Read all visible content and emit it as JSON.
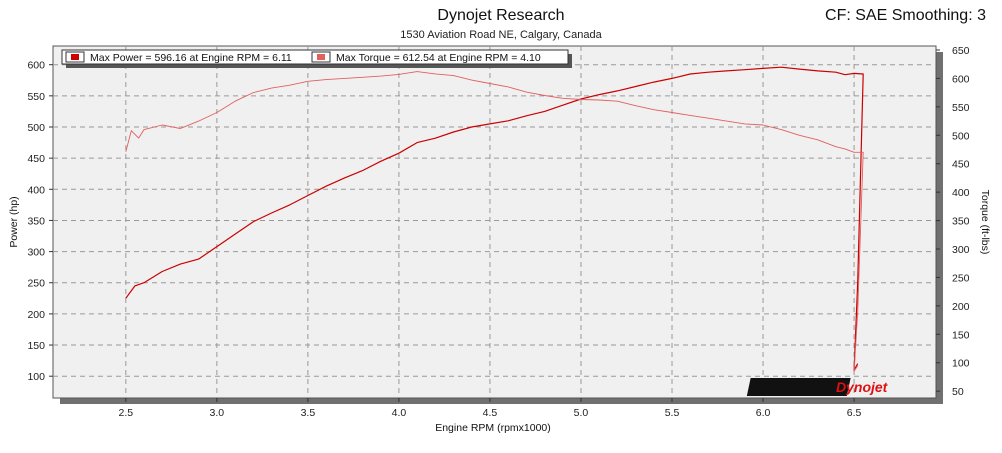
{
  "header": {
    "title": "Dynojet Research",
    "subtitle": "1530 Aviation Road NE, Calgary, Canada",
    "cf_label": "CF: SAE Smoothing: 3"
  },
  "logo_text": "Dynojet",
  "colors": {
    "power": "#cc0000",
    "torque": "#e06060",
    "plot_bg": "#f0f0f0",
    "grid": "#999999"
  },
  "chart_data": {
    "type": "line",
    "title": "",
    "xlabel": "Engine RPM (rpmx1000)",
    "ylabel": "Power (hp)",
    "y2label": "Torque (ft-lbs)",
    "xlim": [
      2.1,
      6.95
    ],
    "ylim": [
      65,
      630
    ],
    "y2lim": [
      38,
      657
    ],
    "x_ticks": [
      "2.5",
      "3.0",
      "3.5",
      "4.0",
      "4.5",
      "5.0",
      "5.5",
      "6.0",
      "6.5"
    ],
    "y_ticks": [
      "100",
      "150",
      "200",
      "250",
      "300",
      "350",
      "400",
      "450",
      "500",
      "550",
      "600"
    ],
    "y2_ticks": [
      "50",
      "100",
      "150",
      "200",
      "250",
      "300",
      "350",
      "400",
      "450",
      "500",
      "550",
      "600",
      "650"
    ],
    "grid": true,
    "legend_position": "top-left",
    "legend": [
      "Max Power = 596.16 at Engine RPM = 6.11",
      "Max Torque = 612.54 at Engine RPM = 4.10"
    ],
    "series": [
      {
        "name": "Max Power = 596.16 at Engine RPM = 6.11",
        "axis": "left",
        "x": [
          2.5,
          2.55,
          2.6,
          2.7,
          2.8,
          2.9,
          3.0,
          3.1,
          3.2,
          3.3,
          3.4,
          3.5,
          3.6,
          3.7,
          3.8,
          3.9,
          4.0,
          4.1,
          4.2,
          4.3,
          4.4,
          4.5,
          4.6,
          4.7,
          4.8,
          4.9,
          5.0,
          5.1,
          5.2,
          5.3,
          5.4,
          5.5,
          5.6,
          5.7,
          5.8,
          5.9,
          6.0,
          6.1,
          6.2,
          6.3,
          6.4,
          6.45,
          6.5,
          6.55,
          6.52,
          6.5,
          6.52
        ],
        "values": [
          225,
          245,
          250,
          268,
          280,
          288,
          308,
          328,
          348,
          362,
          375,
          390,
          405,
          418,
          430,
          445,
          458,
          475,
          482,
          492,
          500,
          505,
          510,
          518,
          525,
          535,
          545,
          552,
          558,
          565,
          572,
          578,
          585,
          588,
          590,
          592,
          594,
          596,
          593,
          590,
          588,
          584,
          586,
          585,
          250,
          110,
          120
        ]
      },
      {
        "name": "Max Torque = 612.54 at Engine RPM = 4.10",
        "axis": "right",
        "x": [
          2.5,
          2.53,
          2.57,
          2.6,
          2.7,
          2.8,
          2.9,
          3.0,
          3.1,
          3.2,
          3.3,
          3.4,
          3.5,
          3.6,
          3.7,
          3.8,
          3.9,
          4.0,
          4.1,
          4.2,
          4.3,
          4.4,
          4.5,
          4.6,
          4.7,
          4.8,
          4.9,
          5.0,
          5.1,
          5.2,
          5.3,
          5.4,
          5.5,
          5.6,
          5.7,
          5.8,
          5.9,
          6.0,
          6.1,
          6.2,
          6.3,
          6.4,
          6.45,
          6.5,
          6.55,
          6.52,
          6.5,
          6.52
        ],
        "values": [
          471,
          508,
          495,
          510,
          518,
          512,
          525,
          540,
          560,
          575,
          583,
          588,
          595,
          598,
          600,
          602,
          604,
          607,
          612,
          608,
          605,
          597,
          591,
          585,
          576,
          570,
          565,
          563,
          562,
          560,
          552,
          545,
          540,
          535,
          530,
          525,
          520,
          518,
          510,
          500,
          492,
          480,
          476,
          470,
          470,
          190,
          85,
          95
        ]
      }
    ]
  }
}
